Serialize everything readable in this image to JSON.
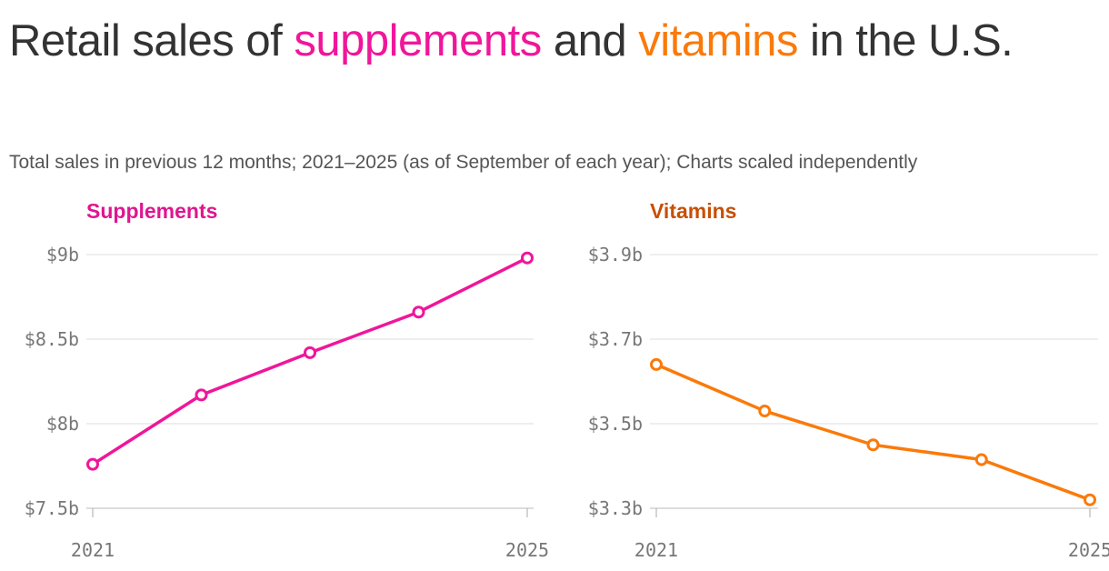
{
  "title": {
    "part1": "Retail sales of ",
    "supplements_word": "supplements",
    "part2": " and ",
    "vitamins_word": "vitamins",
    "part3": " in the U.S."
  },
  "subtitle": "Total sales in previous 12 months; 2021–2025 (as of September of each year); Charts scaled independently",
  "chart_data": [
    {
      "type": "line",
      "title": "Supplements",
      "color": "#f0169a",
      "title_color": "#e0158f",
      "x": [
        2021,
        2022,
        2023,
        2024,
        2025
      ],
      "y": [
        7.76,
        8.17,
        8.42,
        8.66,
        8.98
      ],
      "unit": "billion USD",
      "ylim": [
        7.5,
        9.0
      ],
      "yticks": [
        7.5,
        8.0,
        8.5,
        9.0
      ],
      "ytick_labels": [
        "$7.5b",
        "$8b",
        "$8.5b",
        "$9b"
      ],
      "xtick_labels": [
        "2021",
        "2025"
      ],
      "grid": true
    },
    {
      "type": "line",
      "title": "Vitamins",
      "color": "#fa7a0a",
      "title_color": "#c84f06",
      "x": [
        2021,
        2022,
        2023,
        2024,
        2025
      ],
      "y": [
        3.64,
        3.53,
        3.45,
        3.415,
        3.32
      ],
      "unit": "billion USD",
      "ylim": [
        3.3,
        3.9
      ],
      "yticks": [
        3.3,
        3.5,
        3.7,
        3.9
      ],
      "ytick_labels": [
        "$3.3b",
        "$3.5b",
        "$3.7b",
        "$3.9b"
      ],
      "xtick_labels": [
        "2021",
        "2025"
      ],
      "grid": true
    }
  ]
}
